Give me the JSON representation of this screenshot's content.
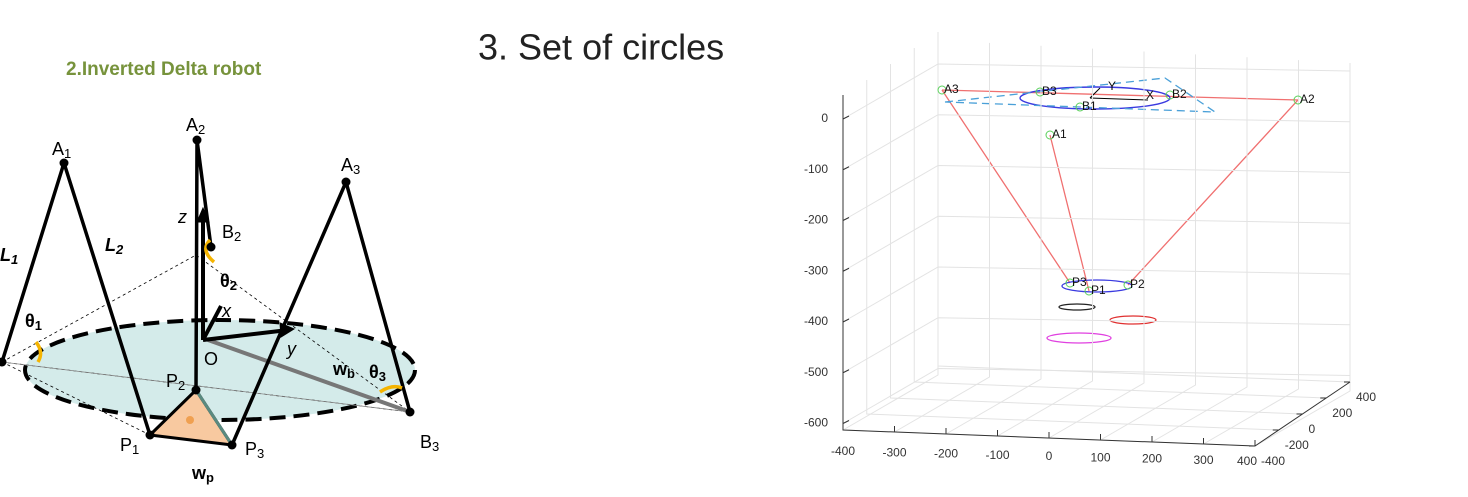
{
  "left": {
    "title": "2.Inverted Delta robot",
    "labels": [
      {
        "text": "A",
        "sub": "1"
      },
      {
        "text": "A",
        "sub": "2"
      },
      {
        "text": "A",
        "sub": "3"
      },
      {
        "text": "B",
        "sub": "2"
      },
      {
        "text": "B",
        "sub": "3"
      },
      {
        "text": "L",
        "sub": "1"
      },
      {
        "text": "L",
        "sub": "2"
      },
      {
        "text": "z"
      },
      {
        "text": "x"
      },
      {
        "text": "y"
      },
      {
        "text": "O"
      },
      {
        "text": "θ",
        "sub": "1"
      },
      {
        "text": "θ",
        "sub": "2"
      },
      {
        "text": "θ",
        "sub": "3"
      },
      {
        "text": "w",
        "sub": "b"
      },
      {
        "text": "P",
        "sub": "2"
      },
      {
        "text": "P",
        "sub": "1"
      },
      {
        "text": "P",
        "sub": "3"
      },
      {
        "text": "w",
        "sub": "p"
      }
    ]
  },
  "right": {
    "title": "3. Set of circles",
    "plot": {
      "z_ticks": [
        0,
        -100,
        -200,
        -300,
        -400,
        -500,
        -600
      ],
      "x_ticks": [
        -400,
        -300,
        -200,
        -100,
        0,
        100,
        200,
        300,
        400
      ],
      "y_ticks": [
        -400,
        -200,
        0,
        200,
        400
      ],
      "points": [
        "A3",
        "B3",
        "Y",
        "X",
        "B2",
        "B1",
        "A1",
        "A2",
        "P3",
        "P1",
        "P2"
      ]
    }
  }
}
